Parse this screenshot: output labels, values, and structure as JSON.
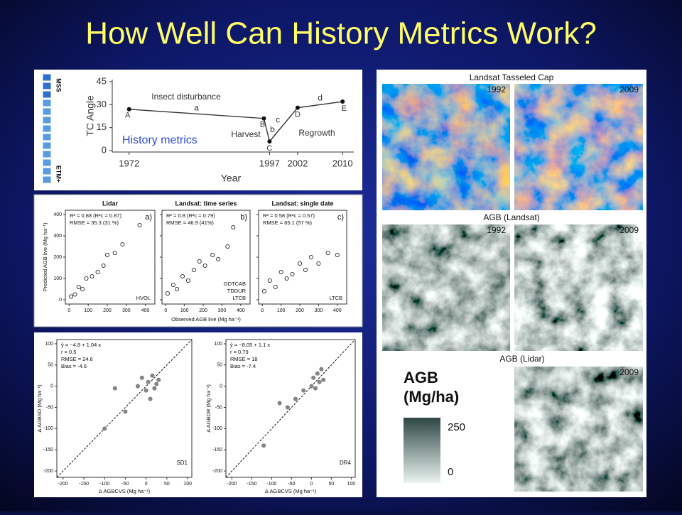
{
  "title": "How Well Can History Metrics Work?",
  "trajectory": {
    "type": "line",
    "ylabel": "TC Angle",
    "xlabel": "Year",
    "sensors": [
      "MSS",
      "ETM+"
    ],
    "x": [
      1972,
      1996,
      1997,
      2002,
      2010
    ],
    "values": [
      27,
      21,
      6,
      28,
      32
    ],
    "point_labels": [
      "A",
      "B",
      "C",
      "D",
      "E"
    ],
    "segment_labels": [
      "a",
      "b",
      "c",
      "d"
    ],
    "annotations": [
      "Insect disturbance",
      "Harvest",
      "Regrowth"
    ],
    "inset_label": "History metrics",
    "xlim": [
      1969,
      2012
    ],
    "ylim": [
      0,
      45
    ],
    "xticks": [
      1972,
      1997,
      2002,
      2010
    ],
    "yticks": [
      0,
      15,
      30,
      45
    ]
  },
  "comparison": {
    "type": "scatter",
    "ylabel": "Predicted AGB live (Mg ha⁻¹)",
    "xlabel": "Observed AGB live (Mg ha⁻¹)",
    "xlim": [
      -20,
      450
    ],
    "ylim": [
      -20,
      420
    ],
    "xticks": [
      0,
      100,
      200,
      300,
      400
    ],
    "yticks": [
      0,
      100,
      200,
      300,
      400
    ],
    "panels": [
      {
        "title": "Lidar",
        "letter": "a)",
        "stats": [
          "R² = 0.88 (R²c = 0.87)",
          "RMSE = 35.3 (31 %)"
        ],
        "note": [
          "HVOL"
        ],
        "x": [
          10,
          30,
          50,
          70,
          90,
          120,
          150,
          180,
          200,
          240,
          280,
          370
        ],
        "y": [
          15,
          25,
          60,
          50,
          100,
          110,
          130,
          160,
          210,
          220,
          260,
          350
        ]
      },
      {
        "title": "Landsat: time series",
        "letter": "b)",
        "stats": [
          "R² = 0.8 (R²c = 0.79)",
          "RMSE = 46.9 (41%)"
        ],
        "note": [
          "GDTCAB",
          "TDDUR",
          "LTCB"
        ],
        "x": [
          10,
          40,
          60,
          90,
          120,
          150,
          180,
          210,
          250,
          280,
          330,
          360
        ],
        "y": [
          30,
          70,
          50,
          110,
          90,
          140,
          180,
          160,
          210,
          190,
          250,
          340
        ]
      },
      {
        "title": "Landsat: single date",
        "letter": "c)",
        "stats": [
          "R² = 0.58 (R²c = 0.57)",
          "RMSE = 65.1 (57 %)"
        ],
        "note": [
          "LTCB"
        ],
        "x": [
          10,
          40,
          70,
          100,
          130,
          160,
          200,
          230,
          260,
          300,
          350,
          400
        ],
        "y": [
          40,
          90,
          60,
          130,
          100,
          120,
          170,
          140,
          200,
          170,
          220,
          210
        ]
      }
    ]
  },
  "delta": {
    "type": "scatter",
    "xlabel": "Δ AGBCVS (Mg ha⁻¹)",
    "xlim": [
      -215,
      110
    ],
    "ylim": [
      -215,
      110
    ],
    "xticks": [
      -200,
      -150,
      -100,
      -50,
      0,
      50,
      100
    ],
    "yticks": [
      -200,
      -150,
      -100,
      -50,
      0,
      50,
      100
    ],
    "panels": [
      {
        "ylabel": "Δ AGBSD (Mg ha⁻¹)",
        "stats": [
          "ŷ = −4.8 + 1.04 x",
          "r = 0.5",
          "RMSE = 24.6",
          "Bias = -4.6"
        ],
        "label": "SD1",
        "x": [
          -100,
          -75,
          -50,
          -20,
          -10,
          0,
          5,
          10,
          15,
          20,
          25,
          30
        ],
        "y": [
          -100,
          -5,
          -60,
          0,
          20,
          -10,
          10,
          -30,
          25,
          -5,
          5,
          15
        ]
      },
      {
        "ylabel": "Δ AGBDR (Mg ha⁻¹)",
        "stats": [
          "ŷ = −8.05 + 1.1 x",
          "r = 0.79",
          "RMSE = 18",
          "Bias = -7.4"
        ],
        "label": "DR4",
        "x": [
          -120,
          -80,
          -60,
          -40,
          -20,
          0,
          5,
          10,
          15,
          20,
          25,
          30
        ],
        "y": [
          -140,
          -40,
          -50,
          -30,
          -10,
          0,
          20,
          -5,
          30,
          10,
          40,
          15
        ]
      }
    ]
  },
  "maps": {
    "sections": [
      {
        "title": "Landsat Tasseled Cap",
        "years": [
          1992,
          2009
        ]
      },
      {
        "title": "AGB (Landsat)",
        "years": [
          1992,
          2009
        ]
      },
      {
        "title": "AGB (Lidar)",
        "years": [
          2009
        ]
      }
    ],
    "legend": {
      "title": [
        "AGB",
        "(Mg/ha)"
      ],
      "max": 250,
      "min": 0
    }
  }
}
